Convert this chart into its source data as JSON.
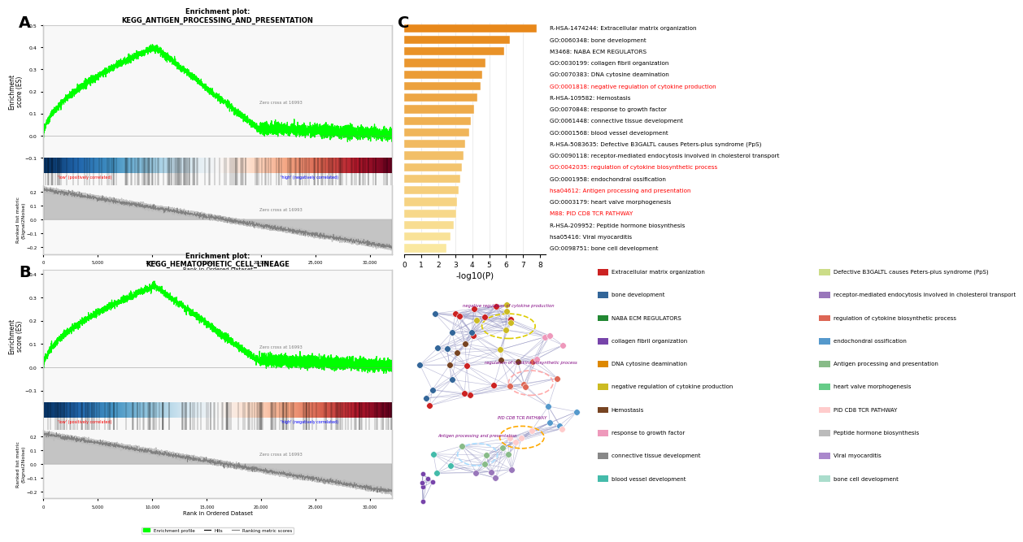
{
  "panel_A_title": "Enrichment plot:\nKEGG_ANTIGEN_PROCESSING_AND_PRESENTATION",
  "panel_B_title": "Enrichment plot:\nKEGG_HEMATOPOIETIC_CELL_LINEAGE",
  "bar_labels": [
    "R-HSA-1474244: Extracellular matrix organization",
    "GO:0060348: bone development",
    "M3468: NABA ECM REGULATORS",
    "GO:0030199: collagen fibril organization",
    "GO:0070383: DNA cytosine deamination",
    "GO:0001818: negative regulation of cytokine production",
    "R-HSA-109582: Hemostasis",
    "GO:0070848: response to growth factor",
    "GO:0061448: connective tissue development",
    "GO:0001568: blood vessel development",
    "R-HSA-5083635: Defective B3GALTL causes Peters-plus syndrome (PpS)",
    "GO:0090118: receptor-mediated endocytosis involved in cholesterol transport",
    "GO:0042035: regulation of cytokine biosynthetic process",
    "GO:0001958: endochondral ossification",
    "hsa04612: Antigen processing and presentation",
    "GO:0003179: heart valve morphogenesis",
    "M88: PID CD8 TCR PATHWAY",
    "R-HSA-209952: Peptide hormone biosynthesis",
    "hsa05416: Viral myocarditis",
    "GO:0098751: bone cell development"
  ],
  "bar_values": [
    7.8,
    6.2,
    5.9,
    4.8,
    4.6,
    4.5,
    4.3,
    4.1,
    3.9,
    3.8,
    3.6,
    3.5,
    3.4,
    3.3,
    3.2,
    3.1,
    3.05,
    2.9,
    2.7,
    2.5
  ],
  "red_label_indices": [
    5,
    12,
    14,
    16
  ],
  "xlabel": "-log10(P)",
  "legend_items": [
    [
      "Extracellular matrix organization",
      "#CC2222"
    ],
    [
      "bone development",
      "#336699"
    ],
    [
      "NABA ECM REGULATORS",
      "#228833"
    ],
    [
      "collagen fibril organization",
      "#7744AA"
    ],
    [
      "DNA cytosine deamination",
      "#DD8800"
    ],
    [
      "negative regulation of cytokine production",
      "#CCBB22"
    ],
    [
      "Hemostasis",
      "#774422"
    ],
    [
      "response to growth factor",
      "#EE99BB"
    ],
    [
      "connective tissue development",
      "#888888"
    ],
    [
      "blood vessel development",
      "#44BBAA"
    ],
    [
      "Defective B3GALTL causes Peters-plus syndrome (PpS)",
      "#CCDD88"
    ],
    [
      "receptor-mediated endocytosis involved in cholesterol transport",
      "#9977BB"
    ],
    [
      "regulation of cytokine biosynthetic process",
      "#DD6655"
    ],
    [
      "endochondral ossification",
      "#5599CC"
    ],
    [
      "Antigen processing and presentation",
      "#88BB88"
    ],
    [
      "heart valve morphogenesis",
      "#66CC88"
    ],
    [
      "PID CD8 TCR PATHWAY",
      "#FFCCCC"
    ],
    [
      "Peptide hormone biosynthesis",
      "#BBBBBB"
    ],
    [
      "Viral myocarditis",
      "#AA88CC"
    ],
    [
      "bone cell development",
      "#AADDCC"
    ]
  ],
  "bg_color": "#F0F0F0",
  "gsea_bg": "#F8F8F8"
}
